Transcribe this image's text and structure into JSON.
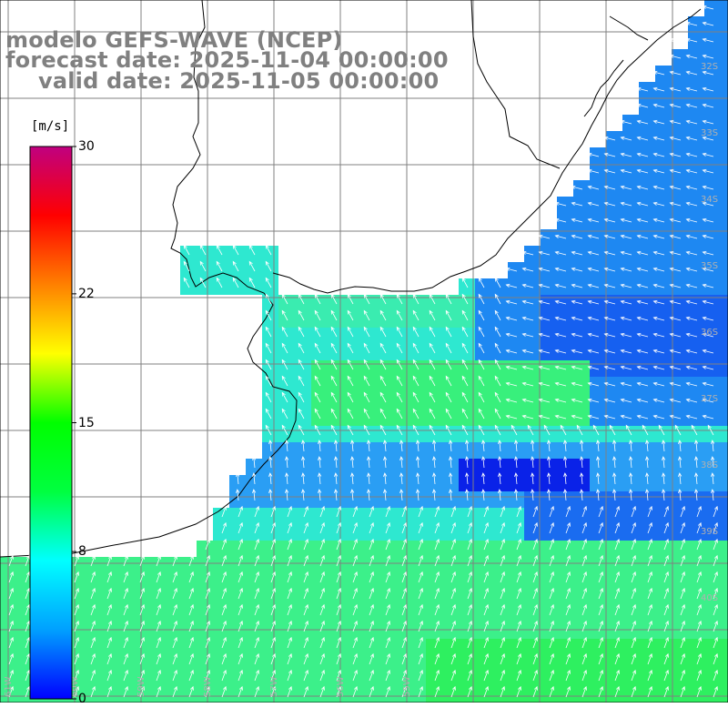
{
  "title": {
    "model": "modelo GEFS-WAVE (NCEP)",
    "forecast": "forecast date: 2025-11-04 00:00:00",
    "valid": "valid date: 2025-11-05 00:00:00"
  },
  "colorbar": {
    "unit": "[m/s]",
    "ticks": [
      "30",
      "22",
      "15",
      "8",
      "0"
    ],
    "tick_values": [
      30,
      22,
      15,
      8,
      0
    ],
    "range": [
      0,
      30
    ],
    "colors": [
      "#0000ff",
      "#00a0ff",
      "#00ffff",
      "#00ff40",
      "#00ff00",
      "#ffff00",
      "#ff8000",
      "#ff0000",
      "#c00080"
    ]
  },
  "map": {
    "lat_labels": [
      "32S",
      "33S",
      "34S",
      "35S",
      "36S",
      "37S",
      "38S",
      "39S",
      "40S"
    ],
    "lon_labels": [
      "61W",
      "60W",
      "59W",
      "58W",
      "57W",
      "56W",
      "55W"
    ],
    "lon_range": [
      -62.1,
      -51.4
    ],
    "lat_range": [
      -41.2,
      -30.1
    ]
  },
  "colors": {
    "land": "#ffffff",
    "grid": "#808080",
    "coast": "#000000",
    "arrow": "#ffffff",
    "title": "#808080"
  }
}
